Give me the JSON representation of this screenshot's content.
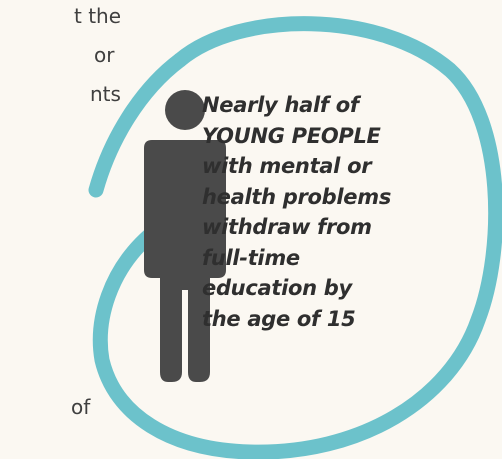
{
  "background_fragments": [
    "t the",
    "or",
    "nts",
    "of"
  ],
  "statistic": {
    "lines": [
      "Nearly half of",
      "YOUNG PEOPLE",
      "with mental or",
      "health problems",
      "withdraw from",
      "full-time",
      "education by",
      "the age of 15"
    ]
  },
  "colors": {
    "ring": "#6cc2cb",
    "figure": "#4a4a4a",
    "background": "#fbf8f2",
    "text": "#2f2f2f"
  },
  "icons": [
    "person-icon"
  ]
}
